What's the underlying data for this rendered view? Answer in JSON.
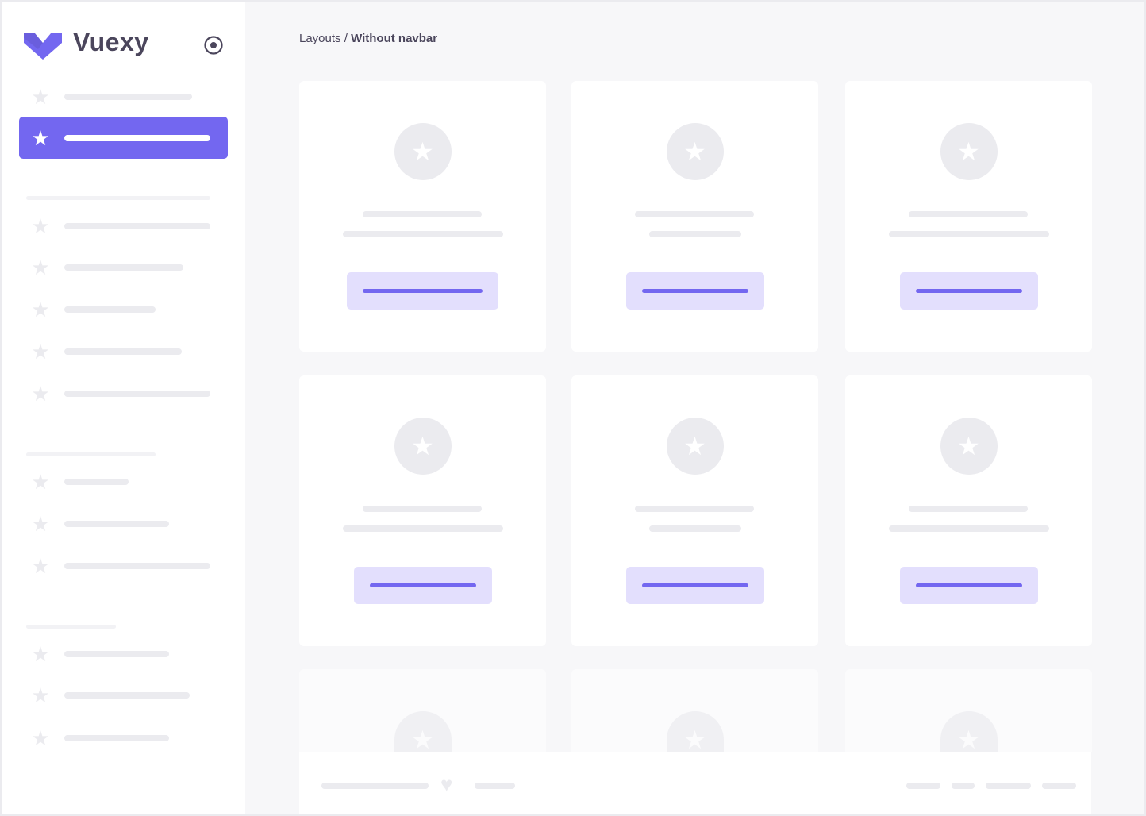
{
  "brand": {
    "name": "Vuexy",
    "color": "#7367f0"
  },
  "breadcrumb": {
    "parent": "Layouts",
    "separator": " / ",
    "current": "Without navbar"
  },
  "icons": {
    "logo": "vuexy-logo-icon",
    "pin": "radio-circle-icon",
    "nav": "star-icon",
    "footer": "heart-icon"
  },
  "colors": {
    "accent": "#7367f0",
    "accent_light": "#e3dffd",
    "placeholder": "#ebebef",
    "background": "#f7f7f9",
    "text": "#4b465c"
  }
}
